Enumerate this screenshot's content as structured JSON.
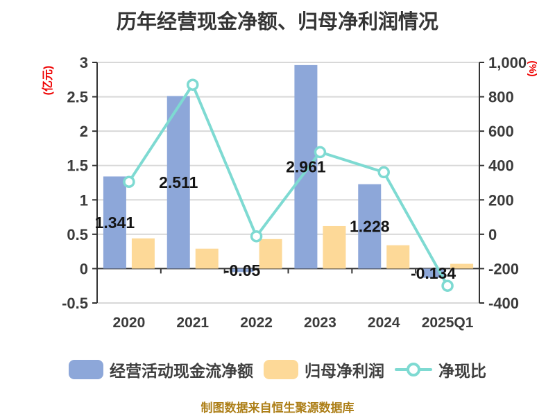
{
  "title": "历年经营现金净额、归母净利润情况",
  "caption": "制图数据来自恒生聚源数据库",
  "colors": {
    "bar_cash": "#8da7d9",
    "bar_profit": "#fdd998",
    "line": "#7edad2",
    "marker_fill": "#ffffff",
    "grid": "#d8d8d8",
    "axis": "#333333",
    "tick_text": "#3b3b3b",
    "bar_label_text": "#141414",
    "unit_label": "#ee0000",
    "caption_text": "#ad7f18",
    "background": "#ffffff"
  },
  "legend": [
    {
      "type": "bar",
      "color_key": "bar_cash",
      "label": "经营活动现金流净额"
    },
    {
      "type": "bar",
      "color_key": "bar_profit",
      "label": "归母净利润"
    },
    {
      "type": "line",
      "color_key": "line",
      "label": "净现比"
    }
  ],
  "chart_data": {
    "type": "bar+line combo, dual axis",
    "title": "历年经营现金净额、归母净利润情况",
    "categories": [
      "2020",
      "2021",
      "2022",
      "2023",
      "2024",
      "2025Q1"
    ],
    "series": [
      {
        "name": "经营活动现金流净额",
        "type": "bar",
        "axis": "left",
        "values": [
          1.341,
          2.511,
          -0.05,
          2.961,
          1.228,
          -0.134
        ],
        "data_labels": [
          "1.341",
          "2.511",
          "-0.05",
          "2.961",
          "1.228",
          "-0.134"
        ]
      },
      {
        "name": "归母净利润",
        "type": "bar",
        "axis": "left",
        "values": [
          0.44,
          0.29,
          0.43,
          0.62,
          0.34,
          0.07
        ]
      },
      {
        "name": "净现比",
        "type": "line",
        "axis": "right",
        "values": [
          305,
          870,
          -12,
          478,
          361,
          -300
        ]
      }
    ],
    "left_axis": {
      "unit": "(亿元)",
      "min": -0.5,
      "max": 3,
      "tick_step": 0.5,
      "tick_labels": [
        "3",
        "2.5",
        "2",
        "1.5",
        "1",
        "0.5",
        "0",
        "-0.5"
      ]
    },
    "right_axis": {
      "unit": "(%)",
      "min": -400,
      "max": 1000,
      "tick_step": 200,
      "tick_labels": [
        "1,000",
        "800",
        "600",
        "400",
        "200",
        "0",
        "-200",
        "-400"
      ]
    },
    "grid": true,
    "legend_position": "bottom"
  }
}
